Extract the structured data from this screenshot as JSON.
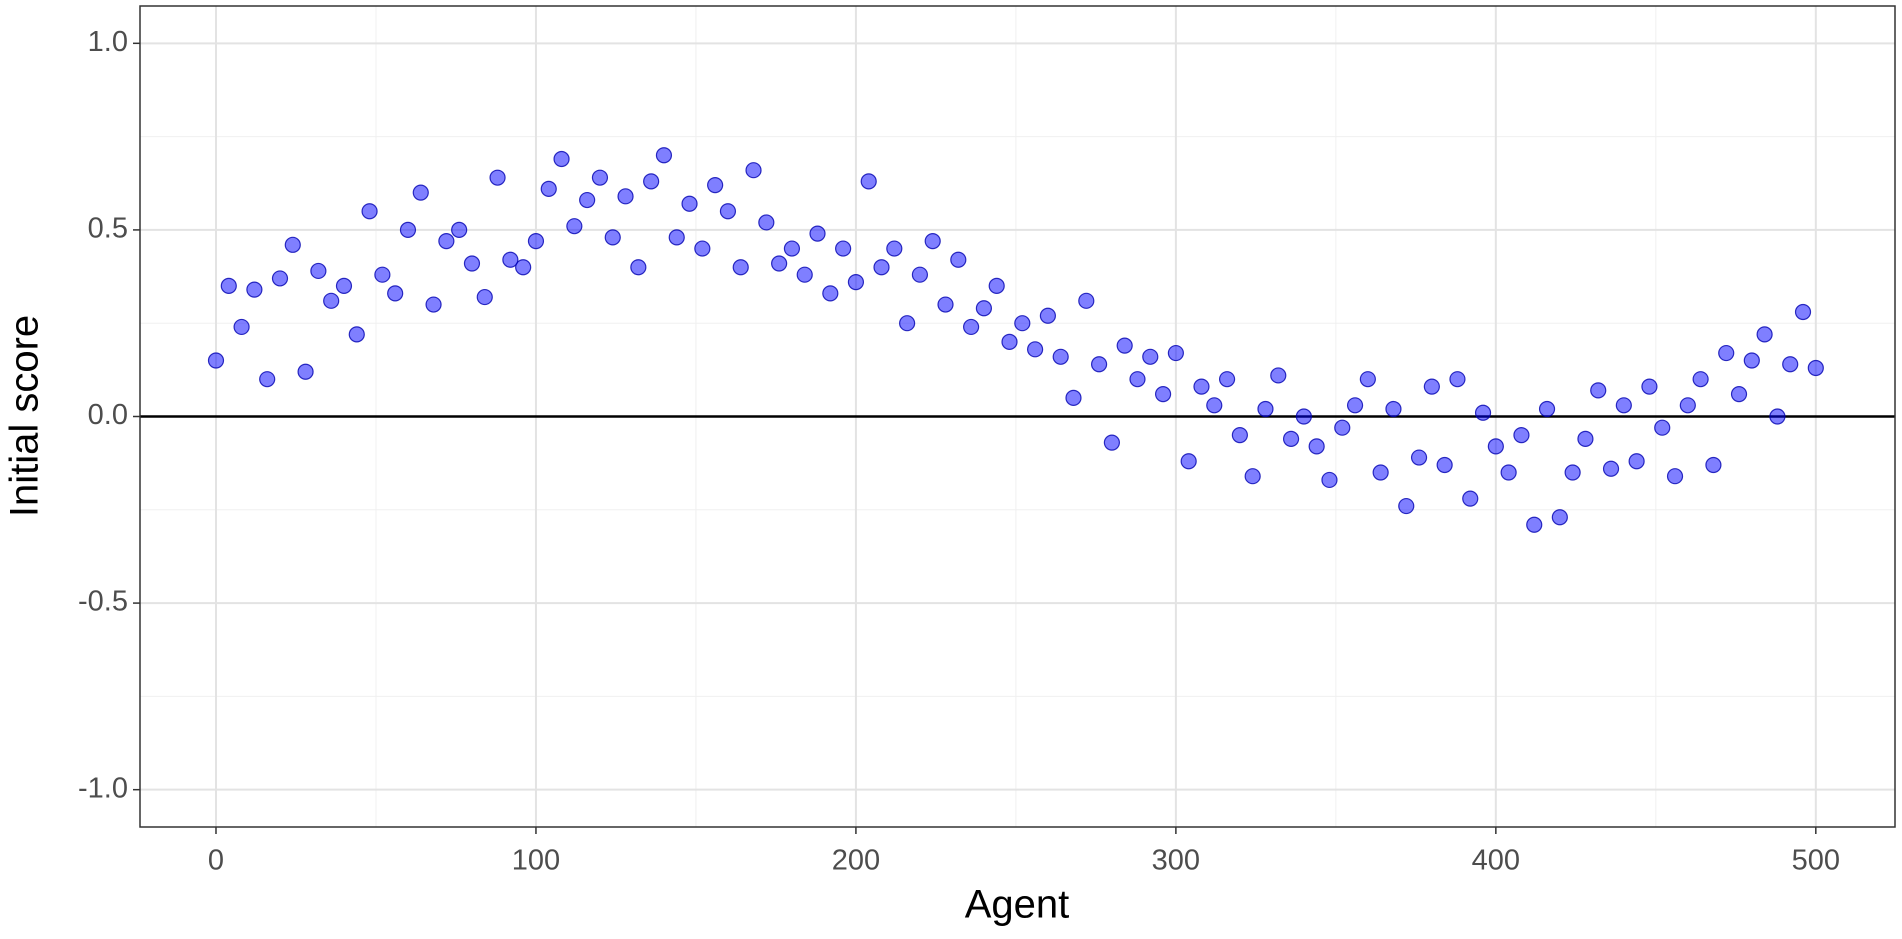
{
  "chart_data": {
    "type": "scatter",
    "x_label": "Agent",
    "y_label": "Initial score",
    "xlim": [
      -23.75,
      524.75
    ],
    "ylim": [
      -1.1,
      1.1
    ],
    "xticks": [
      0,
      100,
      200,
      300,
      400,
      500
    ],
    "yticks": [
      {
        "value": -1,
        "label": "-1.0"
      },
      -0.5,
      {
        "value": 0,
        "label": "0.0"
      },
      0.5,
      {
        "value": 1,
        "label": "1.0"
      }
    ],
    "x_minor_ticks": [
      50,
      150,
      250,
      350,
      450
    ],
    "y_minor_ticks": [
      -0.75,
      -0.25,
      0.25,
      0.75
    ],
    "grid": true,
    "hline": 0,
    "color": "#0000ff",
    "edge_color": "#0000b0",
    "opacity": 0.5,
    "x": [
      0,
      4,
      8,
      12,
      16,
      20,
      24,
      28,
      32,
      36,
      40,
      44,
      48,
      52,
      56,
      60,
      64,
      68,
      72,
      76,
      80,
      84,
      88,
      92,
      96,
      100,
      104,
      108,
      112,
      116,
      120,
      124,
      128,
      132,
      136,
      140,
      144,
      148,
      152,
      156,
      160,
      164,
      168,
      172,
      176,
      180,
      184,
      188,
      192,
      196,
      200,
      204,
      208,
      212,
      216,
      220,
      224,
      228,
      232,
      236,
      240,
      244,
      248,
      252,
      256,
      260,
      264,
      268,
      272,
      276,
      280,
      284,
      288,
      292,
      296,
      300,
      304,
      308,
      312,
      316,
      320,
      324,
      328,
      332,
      336,
      340,
      344,
      348,
      352,
      356,
      360,
      364,
      368,
      372,
      376,
      380,
      384,
      388,
      392,
      396,
      400,
      404,
      408,
      412,
      416,
      420,
      424,
      428,
      432,
      436,
      440,
      444,
      448,
      452,
      456,
      460,
      464,
      468,
      472,
      476,
      480,
      484,
      488,
      492,
      496,
      500
    ],
    "values": [
      0.15,
      0.35,
      0.24,
      0.34,
      0.1,
      0.37,
      0.46,
      0.12,
      0.39,
      0.31,
      0.35,
      0.22,
      0.55,
      0.38,
      0.33,
      0.5,
      0.6,
      0.3,
      0.47,
      0.5,
      0.41,
      0.32,
      0.64,
      0.42,
      0.4,
      0.47,
      0.61,
      0.69,
      0.51,
      0.58,
      0.64,
      0.48,
      0.59,
      0.4,
      0.63,
      0.7,
      0.48,
      0.57,
      0.45,
      0.62,
      0.55,
      0.4,
      0.66,
      0.52,
      0.41,
      0.45,
      0.38,
      0.49,
      0.33,
      0.45,
      0.36,
      0.63,
      0.4,
      0.45,
      0.25,
      0.38,
      0.47,
      0.3,
      0.42,
      0.24,
      0.29,
      0.35,
      0.2,
      0.25,
      0.18,
      0.27,
      0.16,
      0.05,
      0.31,
      0.14,
      -0.07,
      0.19,
      0.1,
      0.16,
      0.06,
      0.17,
      -0.12,
      0.08,
      0.03,
      0.1,
      -0.05,
      -0.16,
      0.02,
      0.11,
      -0.06,
      0.0,
      -0.08,
      -0.17,
      -0.03,
      0.03,
      0.1,
      -0.15,
      0.02,
      -0.24,
      -0.11,
      0.08,
      -0.13,
      0.1,
      -0.22,
      0.01,
      -0.08,
      -0.15,
      -0.05,
      -0.29,
      0.02,
      -0.27,
      -0.15,
      -0.06,
      0.07,
      -0.14,
      0.03,
      -0.12,
      0.08,
      -0.03,
      -0.16,
      0.03,
      0.1,
      -0.13,
      0.17,
      0.06,
      0.15,
      0.22,
      0.0,
      0.14,
      0.28,
      0.13
    ]
  }
}
